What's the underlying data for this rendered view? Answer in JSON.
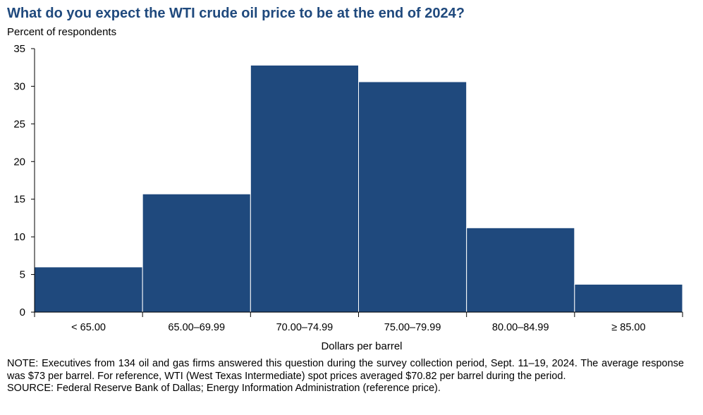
{
  "title": "What do you expect the WTI crude oil price to be at the end of 2024?",
  "subtitle": "Percent of respondents",
  "chart_data": {
    "type": "bar",
    "categories": [
      "< 65.00",
      "65.00–69.99",
      "70.00–74.99",
      "75.00–79.99",
      "80.00–84.99",
      "≥ 85.00"
    ],
    "values": [
      6.0,
      15.7,
      32.8,
      30.6,
      11.2,
      3.7
    ],
    "xlabel": "Dollars  per barrel",
    "ylabel": "Percent of respondents",
    "ylim": [
      0,
      35
    ],
    "yticks": [
      0,
      5,
      10,
      15,
      20,
      25,
      30,
      35
    ],
    "bar_color": "#1f497d",
    "grid": false
  },
  "note": "NOTE:  Executives  from  134  oil  and  gas  firms  answered  this  question  during  the  survey  collection  period,  Sept.  11–19,  2024.  The  average  response  was  $73  per  barrel.  For  reference,  WTI  (West  Texas  Intermediate)  spot  prices  averaged  $70.82  per  barrel during  the  period.",
  "source": "SOURCE:  Federal  Reserve  Bank  of  Dallas;  Energy  Information  Administration  (reference price)."
}
